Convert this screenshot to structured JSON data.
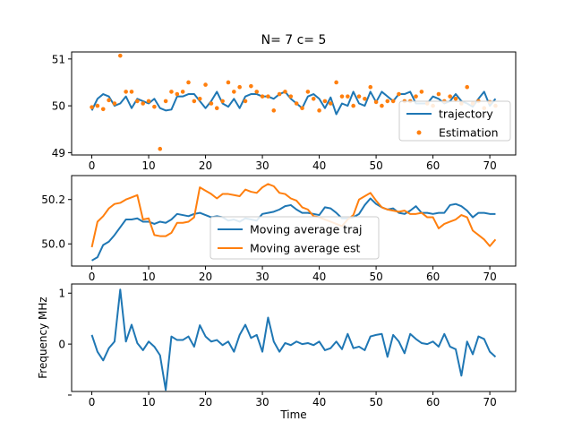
{
  "title": "N= 7 c= 5",
  "colors": {
    "blue": "#1f77b4",
    "orange": "#ff7f0e",
    "frame": "#000000",
    "legend_edge": "#cccccc"
  },
  "chart_data": [
    {
      "type": "line",
      "ylim": [
        48.95,
        51.15
      ],
      "xlim": [
        -3.55,
        74.55
      ],
      "xticks": [
        0,
        10,
        20,
        30,
        40,
        50,
        60,
        70
      ],
      "yticks": [
        49,
        50,
        51
      ],
      "x": [
        0,
        1,
        2,
        3,
        4,
        5,
        6,
        7,
        8,
        9,
        10,
        11,
        12,
        13,
        14,
        15,
        16,
        17,
        18,
        19,
        20,
        21,
        22,
        23,
        24,
        25,
        26,
        27,
        28,
        29,
        30,
        31,
        32,
        33,
        34,
        35,
        36,
        37,
        38,
        39,
        40,
        41,
        42,
        43,
        44,
        45,
        46,
        47,
        48,
        49,
        50,
        51,
        52,
        53,
        54,
        55,
        56,
        57,
        58,
        59,
        60,
        61,
        62,
        63,
        64,
        65,
        66,
        67,
        68,
        69,
        70,
        71
      ],
      "legend": {
        "position": "lower right",
        "entries": [
          "trajectory",
          "Estimation"
        ]
      },
      "series": [
        {
          "name": "trajectory",
          "style": "line",
          "color": "#1f77b4",
          "values": [
            49.9,
            50.15,
            50.25,
            50.2,
            50.0,
            50.05,
            50.2,
            49.95,
            50.15,
            50.1,
            50.05,
            50.15,
            49.95,
            49.9,
            49.92,
            50.2,
            50.2,
            50.25,
            50.25,
            50.1,
            49.95,
            50.1,
            50.3,
            50.05,
            49.98,
            50.15,
            49.95,
            50.2,
            50.25,
            50.25,
            50.2,
            50.2,
            50.15,
            50.25,
            50.3,
            50.15,
            50.05,
            49.95,
            50.2,
            50.25,
            50.15,
            49.95,
            50.18,
            49.82,
            50.05,
            50.0,
            50.3,
            50.05,
            50.0,
            50.3,
            50.08,
            50.3,
            50.2,
            50.1,
            50.25,
            50.25,
            50.3,
            50.05,
            50.05,
            50.05,
            50.2,
            50.15,
            50.05,
            50.1,
            50.25,
            50.1,
            50.05,
            49.98,
            50.15,
            50.3,
            50.0,
            50.15
          ]
        },
        {
          "name": "Estimation",
          "style": "scatter",
          "color": "#ff7f0e",
          "values": [
            49.97,
            50.0,
            49.93,
            50.12,
            50.05,
            51.07,
            50.3,
            50.3,
            50.1,
            50.05,
            50.1,
            49.98,
            49.08,
            50.1,
            50.3,
            50.25,
            50.3,
            50.5,
            50.1,
            50.15,
            50.45,
            50.05,
            49.95,
            50.1,
            50.5,
            50.3,
            50.4,
            50.1,
            50.42,
            50.3,
            50.2,
            50.2,
            49.9,
            50.25,
            50.3,
            50.2,
            50.05,
            49.95,
            50.3,
            50.15,
            49.9,
            50.1,
            50.05,
            50.5,
            50.2,
            50.2,
            50.0,
            50.2,
            50.15,
            50.4,
            50.08,
            50.0,
            50.1,
            50.1,
            50.25,
            50.1,
            50.1,
            50.2,
            50.3,
            50.05,
            50.0,
            50.25,
            50.1,
            50.2,
            50.15,
            50.05,
            50.4,
            50.05,
            50.1,
            49.95,
            50.08,
            50.0
          ]
        }
      ]
    },
    {
      "type": "line",
      "ylim": [
        49.9,
        50.308
      ],
      "xlim": [
        -3.55,
        74.55
      ],
      "xticks": [
        0,
        10,
        20,
        30,
        40,
        50,
        60,
        70
      ],
      "yticks": [
        50.0,
        50.2
      ],
      "ytick_labels": [
        "50.0",
        "50.2"
      ],
      "x": [
        0,
        1,
        2,
        3,
        4,
        5,
        6,
        7,
        8,
        9,
        10,
        11,
        12,
        13,
        14,
        15,
        16,
        17,
        18,
        19,
        20,
        21,
        22,
        23,
        24,
        25,
        26,
        27,
        28,
        29,
        30,
        31,
        32,
        33,
        34,
        35,
        36,
        37,
        38,
        39,
        40,
        41,
        42,
        43,
        44,
        45,
        46,
        47,
        48,
        49,
        50,
        51,
        52,
        53,
        54,
        55,
        56,
        57,
        58,
        59,
        60,
        61,
        62,
        63,
        64,
        65,
        66,
        67,
        68,
        69,
        70,
        71
      ],
      "legend": {
        "position": "center",
        "entries": [
          "Moving average traj",
          "Moving average est"
        ]
      },
      "series": [
        {
          "name": "Moving average traj",
          "style": "line",
          "color": "#1f77b4",
          "values": [
            49.925,
            49.94,
            49.995,
            50.01,
            50.04,
            50.075,
            50.11,
            50.11,
            50.115,
            50.1,
            50.1,
            50.09,
            50.1,
            50.095,
            50.11,
            50.135,
            50.13,
            50.125,
            50.135,
            50.14,
            50.13,
            50.12,
            50.125,
            50.12,
            50.105,
            50.11,
            50.1,
            50.115,
            50.11,
            50.105,
            50.135,
            50.14,
            50.145,
            50.155,
            50.17,
            50.175,
            50.155,
            50.14,
            50.14,
            50.135,
            50.13,
            50.165,
            50.16,
            50.14,
            50.115,
            50.115,
            50.12,
            50.135,
            50.175,
            50.205,
            50.18,
            50.165,
            50.155,
            50.16,
            50.14,
            50.135,
            50.15,
            50.17,
            50.14,
            50.14,
            50.135,
            50.14,
            50.14,
            50.175,
            50.18,
            50.17,
            50.15,
            50.12,
            50.14,
            50.14,
            50.135,
            50.135
          ]
        },
        {
          "name": "Moving average est",
          "style": "line",
          "color": "#ff7f0e",
          "values": [
            49.985,
            50.1,
            50.125,
            50.16,
            50.18,
            50.185,
            50.2,
            50.21,
            50.22,
            50.11,
            50.115,
            50.04,
            50.035,
            50.035,
            50.05,
            50.095,
            50.095,
            50.1,
            50.12,
            50.255,
            50.24,
            50.225,
            50.205,
            50.225,
            50.225,
            50.22,
            50.215,
            50.245,
            50.235,
            50.23,
            50.255,
            50.27,
            50.26,
            50.23,
            50.225,
            50.205,
            50.195,
            50.165,
            50.155,
            50.125,
            50.12,
            50.11,
            50.1,
            50.09,
            50.08,
            50.11,
            50.13,
            50.2,
            50.215,
            50.23,
            50.195,
            50.165,
            50.155,
            50.15,
            50.145,
            50.15,
            50.135,
            50.135,
            50.14,
            50.12,
            50.12,
            50.07,
            50.09,
            50.1,
            50.11,
            50.13,
            50.12,
            50.06,
            50.04,
            50.02,
            49.99,
            50.02
          ]
        }
      ]
    },
    {
      "type": "line",
      "ylim": [
        -0.93,
        1.18
      ],
      "xlim": [
        -3.55,
        74.55
      ],
      "xticks": [
        0,
        10,
        20,
        30,
        40,
        50,
        60,
        70
      ],
      "yticks": [
        -1,
        0,
        1
      ],
      "ytick_labels": [
        "",
        "0",
        "1"
      ],
      "xlabel": "Time",
      "ylabel": "Frequency MHz",
      "x": [
        0,
        1,
        2,
        3,
        4,
        5,
        6,
        7,
        8,
        9,
        10,
        11,
        12,
        13,
        14,
        15,
        16,
        17,
        18,
        19,
        20,
        21,
        22,
        23,
        24,
        25,
        26,
        27,
        28,
        29,
        30,
        31,
        32,
        33,
        34,
        35,
        36,
        37,
        38,
        39,
        40,
        41,
        42,
        43,
        44,
        45,
        46,
        47,
        48,
        49,
        50,
        51,
        52,
        53,
        54,
        55,
        56,
        57,
        58,
        59,
        60,
        61,
        62,
        63,
        64,
        65,
        66,
        67,
        68,
        69,
        70,
        71
      ],
      "series": [
        {
          "name": "",
          "style": "line",
          "color": "#1f77b4",
          "values": [
            0.18,
            -0.15,
            -0.32,
            -0.08,
            0.05,
            1.07,
            0.05,
            0.38,
            0.02,
            -0.12,
            0.05,
            -0.05,
            -0.22,
            -0.9,
            0.15,
            0.08,
            0.08,
            0.15,
            -0.05,
            0.37,
            0.15,
            0.05,
            0.08,
            -0.02,
            0.05,
            -0.15,
            0.18,
            0.38,
            0.12,
            0.18,
            -0.15,
            0.52,
            0.05,
            -0.15,
            0.02,
            -0.02,
            0.05,
            0.0,
            0.02,
            -0.02,
            0.05,
            -0.12,
            -0.08,
            0.05,
            -0.1,
            0.2,
            -0.08,
            -0.05,
            -0.12,
            0.15,
            0.18,
            0.2,
            -0.25,
            0.18,
            0.05,
            -0.18,
            0.2,
            0.1,
            0.02,
            0.0,
            0.05,
            -0.05,
            0.2,
            -0.05,
            -0.1,
            -0.62,
            0.05,
            -0.2,
            0.15,
            0.1,
            -0.15,
            -0.25
          ]
        }
      ]
    }
  ]
}
